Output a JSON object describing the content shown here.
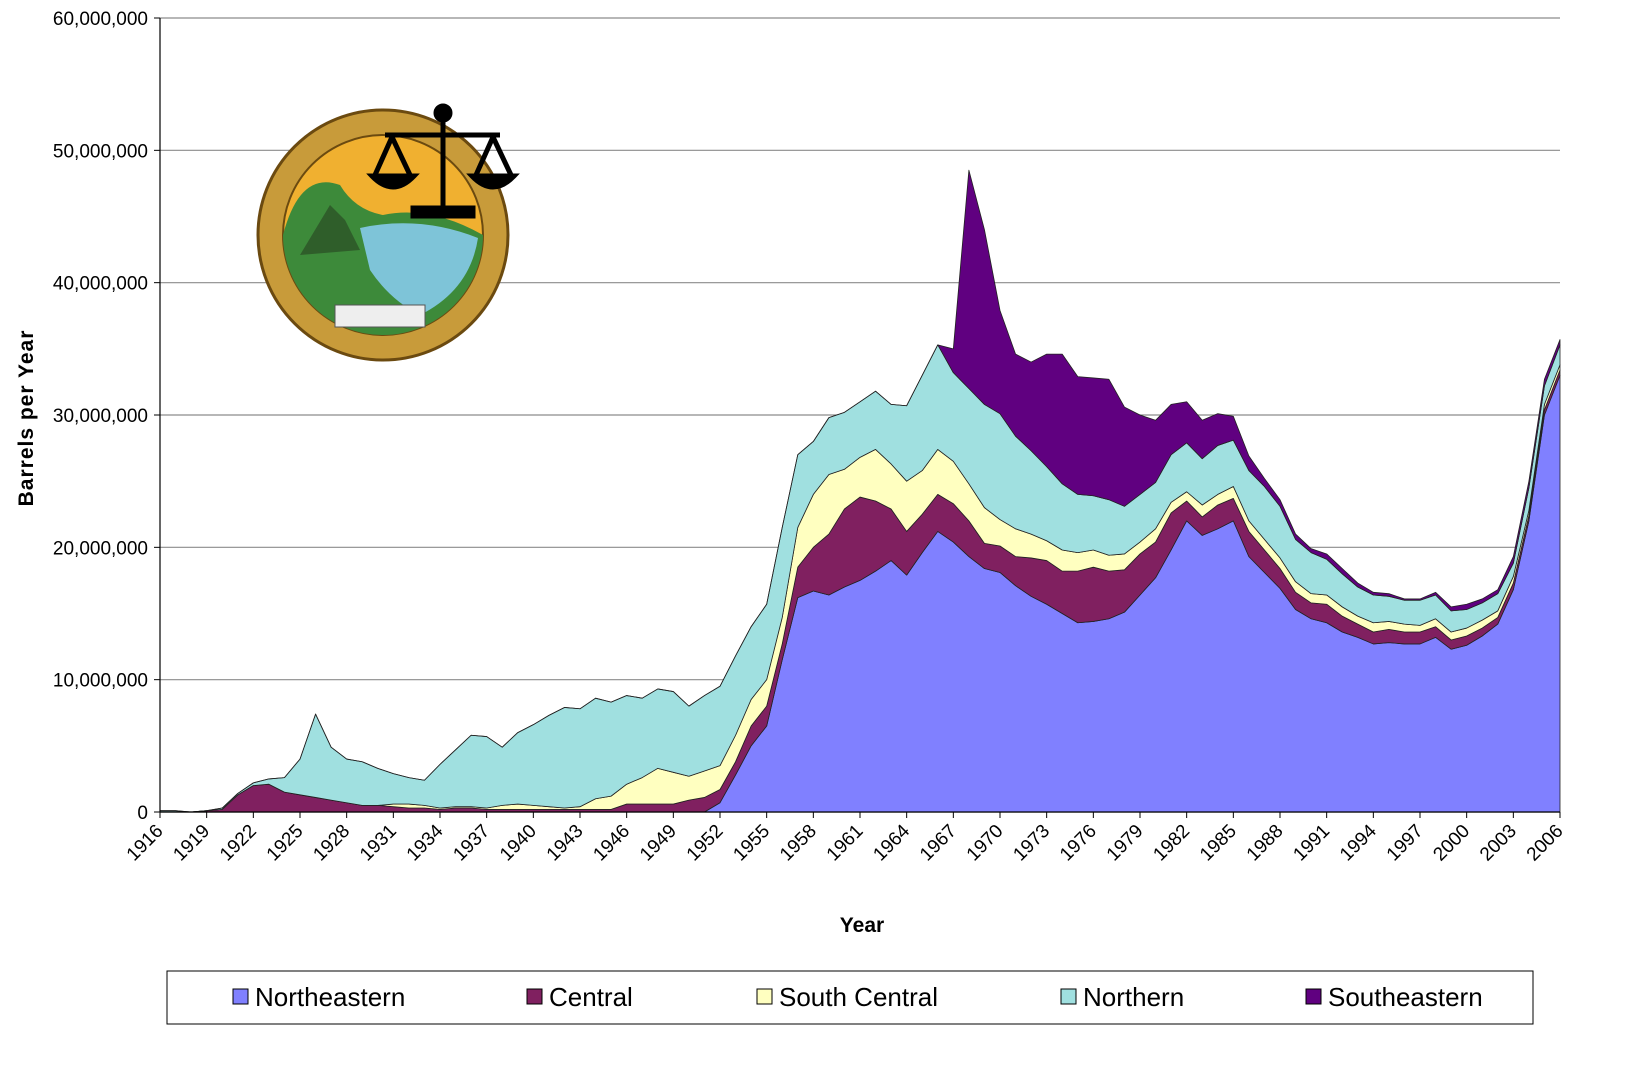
{
  "chart_data": {
    "type": "stacked-area",
    "x_label": "Year",
    "y_label": "Barrels per Year",
    "x": [
      1916,
      1917,
      1918,
      1919,
      1920,
      1921,
      1922,
      1923,
      1924,
      1925,
      1926,
      1927,
      1928,
      1929,
      1930,
      1931,
      1932,
      1933,
      1934,
      1935,
      1936,
      1937,
      1938,
      1939,
      1940,
      1941,
      1942,
      1943,
      1944,
      1945,
      1946,
      1947,
      1948,
      1949,
      1950,
      1951,
      1952,
      1953,
      1954,
      1955,
      1956,
      1957,
      1958,
      1959,
      1960,
      1961,
      1962,
      1963,
      1964,
      1965,
      1966,
      1967,
      1968,
      1969,
      1970,
      1971,
      1972,
      1973,
      1974,
      1975,
      1976,
      1977,
      1978,
      1979,
      1980,
      1981,
      1982,
      1983,
      1984,
      1985,
      1986,
      1987,
      1988,
      1989,
      1990,
      1991,
      1992,
      1993,
      1994,
      1995,
      1996,
      1997,
      1998,
      1999,
      2000,
      2001,
      2002,
      2003,
      2004,
      2005,
      2006
    ],
    "xlim": [
      1916,
      2006
    ],
    "xticks": [
      1916,
      1919,
      1922,
      1925,
      1928,
      1931,
      1934,
      1937,
      1940,
      1943,
      1946,
      1949,
      1952,
      1955,
      1958,
      1961,
      1964,
      1967,
      1970,
      1973,
      1976,
      1979,
      1982,
      1985,
      1988,
      1991,
      1994,
      1997,
      2000,
      2003,
      2006
    ],
    "ylim": [
      0,
      60000000
    ],
    "yticks": [
      0,
      {
        "value": 10000000,
        "label": "10,000,000"
      },
      {
        "value": 20000000,
        "label": "20,000,000"
      },
      {
        "value": 30000000,
        "label": "30,000,000"
      },
      {
        "value": 40000000,
        "label": "40,000,000"
      },
      {
        "value": 50000000,
        "label": "50,000,000"
      },
      {
        "value": 60000000,
        "label": "60,000,000"
      }
    ],
    "grid": true,
    "legend": "bottom",
    "series": [
      {
        "name": "Northeastern",
        "color": "#8080ff",
        "values": [
          0,
          0,
          0,
          0,
          0,
          0,
          0,
          0,
          0,
          0,
          0,
          0,
          0,
          0,
          0,
          0,
          0,
          0,
          0,
          0,
          0,
          0,
          0,
          0,
          0,
          0,
          0,
          0,
          0,
          0,
          0,
          0,
          0,
          0,
          0,
          0,
          700000,
          2800000,
          5000000,
          6500000,
          11500000,
          16200000,
          16700000,
          16400000,
          17000000,
          17500000,
          18200000,
          19000000,
          17900000,
          19600000,
          21200000,
          20400000,
          19300000,
          18400000,
          18100000,
          17100000,
          16300000,
          15700000,
          15000000,
          14300000,
          14400000,
          14600000,
          15100000,
          16400000,
          17700000,
          19800000,
          22000000,
          20900000,
          21400000,
          22000000,
          19300000,
          18100000,
          16900000,
          15300000,
          14600000,
          14300000,
          13600000,
          13200000,
          12700000,
          12800000,
          12700000,
          12700000,
          13200000,
          12300000,
          12600000,
          13300000,
          14200000,
          16800000,
          22000000,
          30000000,
          33000000
        ]
      },
      {
        "name": "Central",
        "color": "#802060",
        "values": [
          0,
          0,
          0,
          100000,
          200000,
          1300000,
          2000000,
          2100000,
          1500000,
          1300000,
          1100000,
          900000,
          700000,
          500000,
          500000,
          400000,
          300000,
          300000,
          200000,
          300000,
          300000,
          200000,
          200000,
          200000,
          200000,
          200000,
          200000,
          200000,
          200000,
          200000,
          600000,
          600000,
          600000,
          600000,
          900000,
          1100000,
          1000000,
          1000000,
          1500000,
          1500000,
          1200000,
          2300000,
          3300000,
          4600000,
          5900000,
          6300000,
          5300000,
          3900000,
          3300000,
          2900000,
          2800000,
          2900000,
          2700000,
          1900000,
          2000000,
          2200000,
          2900000,
          3300000,
          3200000,
          3900000,
          4100000,
          3600000,
          3200000,
          3100000,
          2700000,
          2800000,
          1500000,
          1400000,
          1800000,
          1700000,
          1900000,
          1700000,
          1500000,
          1300000,
          1200000,
          1400000,
          1200000,
          1000000,
          900000,
          1000000,
          900000,
          900000,
          800000,
          700000,
          700000,
          600000,
          500000,
          500000,
          400000,
          400000,
          400000
        ]
      },
      {
        "name": "South Central",
        "color": "#ffffc0",
        "values": [
          0,
          0,
          0,
          0,
          0,
          0,
          0,
          0,
          0,
          0,
          0,
          0,
          0,
          0,
          0,
          200000,
          300000,
          200000,
          100000,
          100000,
          100000,
          100000,
          300000,
          400000,
          300000,
          200000,
          100000,
          200000,
          800000,
          1000000,
          1500000,
          2000000,
          2700000,
          2400000,
          1800000,
          2000000,
          1800000,
          2000000,
          2000000,
          2000000,
          2000000,
          3000000,
          4000000,
          4500000,
          3000000,
          3000000,
          3900000,
          3400000,
          3800000,
          3300000,
          3400000,
          3200000,
          2800000,
          2700000,
          2000000,
          2100000,
          1800000,
          1500000,
          1600000,
          1400000,
          1300000,
          1200000,
          1200000,
          900000,
          1000000,
          800000,
          700000,
          900000,
          800000,
          900000,
          800000,
          800000,
          800000,
          800000,
          700000,
          700000,
          700000,
          600000,
          700000,
          600000,
          600000,
          500000,
          600000,
          600000,
          600000,
          600000,
          500000,
          500000,
          400000,
          400000,
          400000
        ]
      },
      {
        "name": "Northern",
        "color": "#a0e0e0",
        "values": [
          100000,
          100000,
          0,
          0,
          100000,
          100000,
          200000,
          400000,
          1100000,
          2700000,
          6300000,
          4000000,
          3300000,
          3300000,
          2800000,
          2300000,
          2000000,
          1900000,
          3300000,
          4300000,
          5400000,
          5400000,
          4400000,
          5400000,
          6100000,
          6900000,
          7600000,
          7400000,
          7600000,
          7100000,
          6700000,
          6000000,
          6000000,
          6100000,
          5300000,
          5700000,
          6000000,
          6000000,
          5500000,
          5700000,
          6800000,
          5500000,
          4000000,
          4300000,
          4300000,
          4200000,
          4400000,
          4500000,
          5700000,
          7200000,
          7900000,
          6700000,
          7200000,
          7800000,
          8000000,
          7000000,
          6300000,
          5600000,
          5000000,
          4400000,
          4100000,
          4200000,
          3600000,
          3600000,
          3500000,
          3600000,
          3700000,
          3500000,
          3700000,
          3500000,
          3800000,
          4000000,
          3900000,
          3200000,
          3100000,
          2700000,
          2500000,
          2200000,
          2100000,
          1900000,
          1800000,
          1900000,
          1800000,
          1600000,
          1400000,
          1300000,
          1300000,
          1000000,
          1700000,
          1400000,
          1500000
        ]
      },
      {
        "name": "Southeastern",
        "color": "#600080",
        "values": [
          0,
          0,
          0,
          0,
          0,
          0,
          0,
          0,
          0,
          0,
          0,
          0,
          0,
          0,
          0,
          0,
          0,
          0,
          0,
          0,
          0,
          0,
          0,
          0,
          0,
          0,
          0,
          0,
          0,
          0,
          0,
          0,
          0,
          0,
          0,
          0,
          0,
          0,
          0,
          0,
          0,
          0,
          0,
          0,
          0,
          0,
          0,
          0,
          0,
          0,
          0,
          1800000,
          16500000,
          13200000,
          7800000,
          6200000,
          6700000,
          8500000,
          9800000,
          8900000,
          8900000,
          9100000,
          7500000,
          6000000,
          4700000,
          3800000,
          3100000,
          2900000,
          2400000,
          1800000,
          1100000,
          600000,
          500000,
          400000,
          300000,
          400000,
          400000,
          300000,
          200000,
          200000,
          100000,
          100000,
          200000,
          300000,
          400000,
          300000,
          300000,
          500000,
          500000,
          500000,
          400000
        ]
      }
    ]
  }
}
